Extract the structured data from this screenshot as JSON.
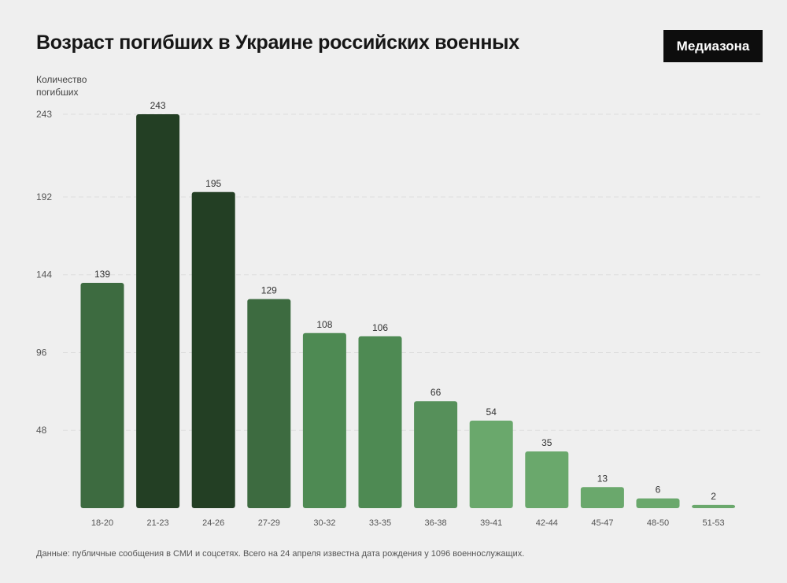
{
  "header": {
    "title": "Возраст погибших в Украине российских военных",
    "brand": "Медиазона"
  },
  "footer": {
    "note": "Данные: публичные сообщения в СМИ и соцсетях. Всего на 24 апреля известна дата рождения у 1096 военнослужащих."
  },
  "chart_data": {
    "type": "bar",
    "title": "Возраст погибших в Украине российских военных",
    "ylabel": "Количество погибших",
    "xlabel": "",
    "categories": [
      "18-20",
      "21-23",
      "24-26",
      "27-29",
      "30-32",
      "33-35",
      "36-38",
      "39-41",
      "42-44",
      "45-47",
      "48-50",
      "51-53"
    ],
    "values": [
      139,
      243,
      195,
      129,
      108,
      106,
      66,
      54,
      35,
      13,
      6,
      2
    ],
    "bar_colors": [
      "#3d6b40",
      "#233f24",
      "#233f24",
      "#3d6b40",
      "#4e8a53",
      "#4e8a53",
      "#56905a",
      "#6aa86c",
      "#6aa86c",
      "#6aa86c",
      "#6aa86c",
      "#6aa86c"
    ],
    "yticks": [
      48,
      96,
      144,
      192,
      243
    ],
    "ylim": [
      0,
      243
    ],
    "grid": true,
    "legend": "none"
  }
}
